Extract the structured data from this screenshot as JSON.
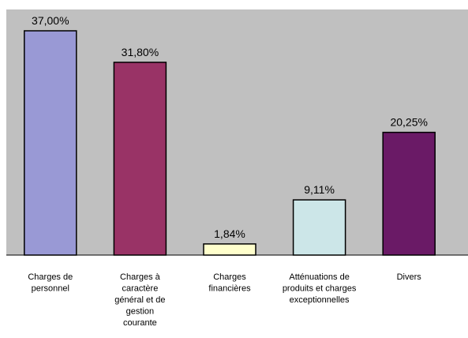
{
  "chart_data": {
    "type": "bar",
    "title": "",
    "categories": [
      "Charges de\npersonnel",
      "Charges à\ncaractère\ngénéral et de\ngestion\ncourante",
      "Charges\nfinancières",
      "Atténuations de\nproduits et charges\nexceptionnelles",
      "Divers"
    ],
    "values": [
      37.0,
      31.8,
      1.84,
      9.11,
      20.25
    ],
    "value_labels": [
      "37,00%",
      "31,80%",
      "1,84%",
      "9,11%",
      "20,25%"
    ],
    "bar_colors": [
      "#9999d5",
      "#993366",
      "#ffffcc",
      "#cce6e8",
      "#6a1a66"
    ],
    "plot_background": "#c0c0c0",
    "ylim": [
      0,
      37
    ],
    "grid": false,
    "legend": "none"
  }
}
